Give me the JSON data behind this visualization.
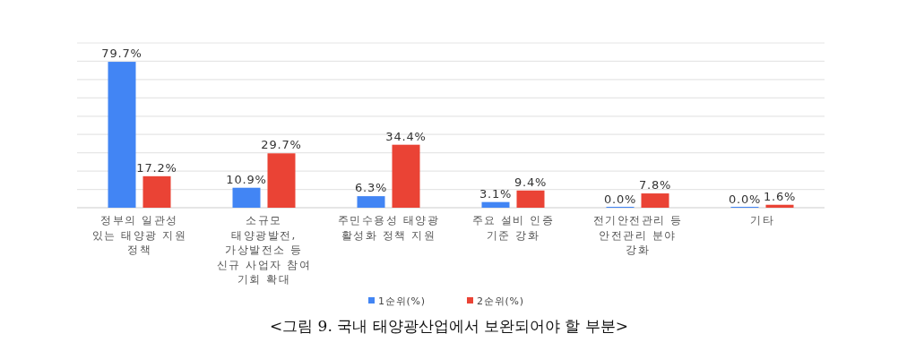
{
  "chart_data": {
    "type": "bar",
    "categories": [
      "정부의 일관성\n있는 태양광 지원\n정책",
      "소규모\n태양광발전,\n가상발전소 등\n신규 사업자 참여\n기회 확대",
      "주민수용성 태양광\n활성화 정책 지원",
      "주요 설비 인증\n기준 강화",
      "전기안전관리 등\n안전관리 분야\n강화",
      "기타"
    ],
    "series": [
      {
        "name": "1순위(%)",
        "color": "#4285f4",
        "values": [
          79.7,
          10.9,
          6.3,
          3.1,
          0.0,
          0.0
        ],
        "value_labels": [
          "79.7%",
          "10.9%",
          "6.3%",
          "3.1%",
          "0.0%",
          "0.0%"
        ]
      },
      {
        "name": "2순위(%)",
        "color": "#ea4335",
        "values": [
          17.2,
          29.7,
          34.4,
          9.4,
          7.8,
          1.6
        ],
        "value_labels": [
          "17.2%",
          "29.7%",
          "34.4%",
          "9.4%",
          "7.8%",
          "1.6%"
        ]
      }
    ],
    "ylim": [
      0,
      90
    ],
    "yticks": [
      {
        "value": 0,
        "label": null
      },
      {
        "value": 10,
        "label": null
      },
      {
        "value": 20,
        "label": null
      },
      {
        "value": 30,
        "label": null
      },
      {
        "value": 40,
        "label": null
      },
      {
        "value": 50,
        "label": null
      },
      {
        "value": 60,
        "label": null
      },
      {
        "value": 70,
        "label": null
      },
      {
        "value": 80,
        "label": null
      },
      {
        "value": 90,
        "label": null
      }
    ],
    "tick_labels": "x",
    "grid": "y",
    "legend": "bottom",
    "annotations": [
      "<그림 9. 국내 태양광산업에서 보완되어야 할 부분>"
    ]
  }
}
